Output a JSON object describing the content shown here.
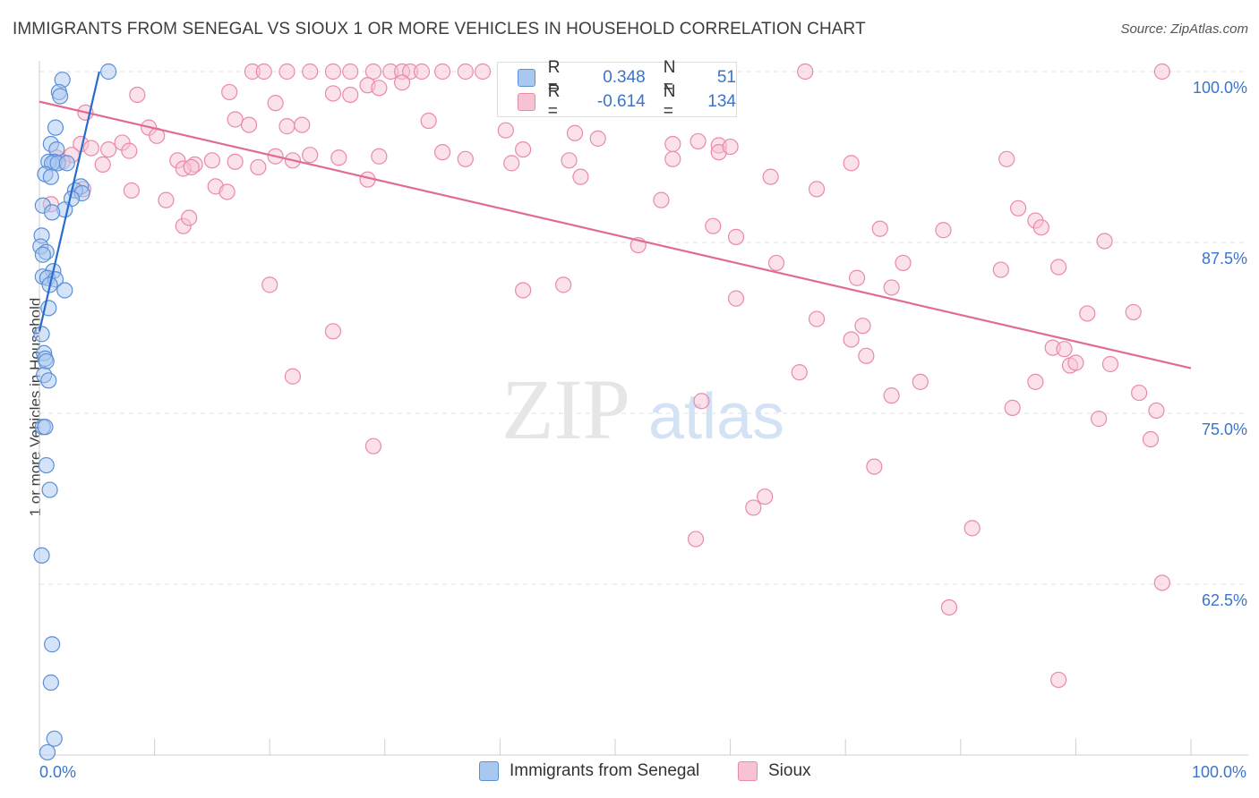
{
  "header": {
    "title": "IMMIGRANTS FROM SENEGAL VS SIOUX 1 OR MORE VEHICLES IN HOUSEHOLD CORRELATION CHART",
    "source": "Source: ZipAtlas.com"
  },
  "watermark": {
    "zip": "ZIP",
    "atlas": "atlas"
  },
  "legend": {
    "r_label": "R =",
    "n_label": "N =",
    "series": [
      {
        "r": "0.348",
        "n": "51"
      },
      {
        "r": "-0.614",
        "n": "134"
      }
    ]
  },
  "bottom_legend": [
    "Immigrants from Senegal",
    "Sioux"
  ],
  "colors": {
    "blue_fill": "#a9c8f0",
    "blue_stroke": "#5b8fd6",
    "blue_line": "#2a6ccc",
    "pink_fill": "#f7c3d4",
    "pink_stroke": "#e98aa9",
    "pink_line": "#e06b96",
    "tick_text": "#3a74cc"
  },
  "chart_data": {
    "type": "scatter",
    "title": "IMMIGRANTS FROM SENEGAL VS SIOUX 1 OR MORE VEHICLES IN HOUSEHOLD CORRELATION CHART",
    "xlabel": "",
    "ylabel": "1 or more Vehicles in Household",
    "xlim": [
      0,
      100
    ],
    "ylim": [
      50,
      100
    ],
    "x_tick_labels": [
      "0.0%",
      "100.0%"
    ],
    "y_ticks": [
      62.5,
      75.0,
      87.5,
      100.0
    ],
    "y_tick_labels": [
      "62.5%",
      "75.0%",
      "87.5%",
      "100.0%"
    ],
    "series": [
      {
        "name": "Immigrants from Senegal",
        "r": 0.348,
        "n": 51,
        "trend": [
          [
            0.0,
            81.0
          ],
          [
            5.2,
            100.0
          ]
        ],
        "points": [
          [
            6.0,
            100.0
          ],
          [
            2.0,
            99.4
          ],
          [
            1.7,
            98.5
          ],
          [
            1.8,
            98.2
          ],
          [
            1.4,
            95.9
          ],
          [
            1.0,
            94.7
          ],
          [
            1.5,
            94.3
          ],
          [
            1.3,
            93.4
          ],
          [
            0.8,
            93.4
          ],
          [
            1.1,
            93.3
          ],
          [
            1.6,
            93.3
          ],
          [
            2.4,
            93.3
          ],
          [
            0.5,
            92.5
          ],
          [
            1.0,
            92.3
          ],
          [
            3.6,
            91.6
          ],
          [
            3.1,
            91.3
          ],
          [
            3.7,
            91.1
          ],
          [
            2.8,
            90.7
          ],
          [
            0.3,
            90.2
          ],
          [
            2.2,
            89.9
          ],
          [
            1.1,
            89.7
          ],
          [
            0.2,
            88.0
          ],
          [
            0.1,
            87.2
          ],
          [
            0.6,
            86.8
          ],
          [
            0.3,
            86.6
          ],
          [
            1.2,
            85.4
          ],
          [
            0.3,
            85.0
          ],
          [
            0.7,
            84.9
          ],
          [
            1.4,
            84.8
          ],
          [
            0.9,
            84.4
          ],
          [
            2.2,
            84.0
          ],
          [
            0.8,
            82.7
          ],
          [
            0.2,
            80.8
          ],
          [
            0.4,
            79.4
          ],
          [
            0.5,
            79.0
          ],
          [
            0.6,
            78.8
          ],
          [
            0.4,
            77.8
          ],
          [
            0.8,
            77.4
          ],
          [
            0.3,
            74.0
          ],
          [
            0.5,
            74.0
          ],
          [
            0.6,
            71.2
          ],
          [
            0.9,
            69.4
          ],
          [
            0.2,
            64.6
          ],
          [
            1.1,
            58.1
          ],
          [
            1.0,
            55.3
          ],
          [
            1.3,
            51.2
          ],
          [
            0.7,
            50.2
          ]
        ]
      },
      {
        "name": "Sioux",
        "r": -0.614,
        "n": 134,
        "trend": [
          [
            0.0,
            97.8
          ],
          [
            100.0,
            78.3
          ]
        ],
        "points": [
          [
            18.5,
            100.0
          ],
          [
            19.5,
            100.0
          ],
          [
            21.5,
            100.0
          ],
          [
            23.5,
            100.0
          ],
          [
            25.5,
            100.0
          ],
          [
            27.0,
            100.0
          ],
          [
            29.0,
            100.0
          ],
          [
            30.5,
            100.0
          ],
          [
            31.5,
            100.0
          ],
          [
            32.2,
            100.0
          ],
          [
            33.2,
            100.0
          ],
          [
            35.0,
            100.0
          ],
          [
            37.0,
            100.0
          ],
          [
            38.5,
            100.0
          ],
          [
            66.5,
            100.0
          ],
          [
            97.5,
            100.0
          ],
          [
            28.5,
            99.0
          ],
          [
            29.5,
            98.8
          ],
          [
            31.5,
            99.2
          ],
          [
            25.5,
            98.4
          ],
          [
            27.0,
            98.3
          ],
          [
            8.5,
            98.3
          ],
          [
            16.5,
            98.5
          ],
          [
            20.5,
            97.7
          ],
          [
            4.0,
            97.0
          ],
          [
            17.0,
            96.5
          ],
          [
            18.2,
            96.1
          ],
          [
            21.5,
            96.0
          ],
          [
            22.8,
            96.1
          ],
          [
            33.8,
            96.4
          ],
          [
            9.5,
            95.9
          ],
          [
            10.2,
            95.3
          ],
          [
            3.6,
            94.7
          ],
          [
            4.5,
            94.4
          ],
          [
            6.0,
            94.3
          ],
          [
            7.2,
            94.8
          ],
          [
            40.5,
            95.7
          ],
          [
            46.5,
            95.5
          ],
          [
            48.5,
            95.1
          ],
          [
            55.0,
            94.7
          ],
          [
            57.2,
            94.9
          ],
          [
            59.0,
            94.6
          ],
          [
            2.8,
            93.9
          ],
          [
            1.5,
            93.7
          ],
          [
            7.8,
            94.2
          ],
          [
            12.0,
            93.5
          ],
          [
            13.5,
            93.2
          ],
          [
            15.0,
            93.5
          ],
          [
            17.0,
            93.4
          ],
          [
            19.0,
            93.0
          ],
          [
            20.5,
            93.8
          ],
          [
            22.0,
            93.5
          ],
          [
            23.5,
            93.9
          ],
          [
            26.0,
            93.7
          ],
          [
            29.5,
            93.8
          ],
          [
            35.0,
            94.1
          ],
          [
            37.0,
            93.6
          ],
          [
            41.0,
            93.3
          ],
          [
            42.0,
            94.3
          ],
          [
            46.0,
            93.5
          ],
          [
            55.0,
            93.6
          ],
          [
            59.0,
            94.1
          ],
          [
            60.0,
            94.5
          ],
          [
            63.5,
            92.3
          ],
          [
            70.5,
            93.3
          ],
          [
            84.0,
            93.6
          ],
          [
            2.0,
            93.4
          ],
          [
            5.5,
            93.2
          ],
          [
            12.5,
            92.9
          ],
          [
            13.2,
            93.0
          ],
          [
            15.3,
            91.6
          ],
          [
            28.5,
            92.1
          ],
          [
            47.0,
            92.3
          ],
          [
            3.8,
            91.4
          ],
          [
            8.0,
            91.3
          ],
          [
            11.0,
            90.6
          ],
          [
            16.3,
            91.2
          ],
          [
            54.0,
            90.6
          ],
          [
            67.5,
            91.4
          ],
          [
            85.0,
            90.0
          ],
          [
            1.0,
            90.3
          ],
          [
            12.5,
            88.7
          ],
          [
            13.0,
            89.3
          ],
          [
            58.5,
            88.7
          ],
          [
            60.5,
            87.9
          ],
          [
            73.0,
            88.5
          ],
          [
            78.5,
            88.4
          ],
          [
            86.5,
            89.1
          ],
          [
            87.0,
            88.6
          ],
          [
            92.5,
            87.6
          ],
          [
            52.0,
            87.3
          ],
          [
            64.0,
            86.0
          ],
          [
            75.0,
            86.0
          ],
          [
            83.5,
            85.5
          ],
          [
            88.5,
            85.7
          ],
          [
            45.5,
            84.4
          ],
          [
            60.5,
            83.4
          ],
          [
            71.0,
            84.9
          ],
          [
            74.0,
            84.2
          ],
          [
            95.0,
            82.4
          ],
          [
            20.0,
            84.4
          ],
          [
            42.0,
            84.0
          ],
          [
            67.5,
            81.9
          ],
          [
            71.5,
            81.4
          ],
          [
            91.0,
            82.3
          ],
          [
            25.5,
            81.0
          ],
          [
            70.5,
            80.4
          ],
          [
            71.8,
            79.2
          ],
          [
            88.0,
            79.8
          ],
          [
            89.0,
            79.7
          ],
          [
            66.0,
            78.0
          ],
          [
            76.5,
            77.3
          ],
          [
            86.5,
            77.3
          ],
          [
            89.5,
            78.5
          ],
          [
            90.0,
            78.7
          ],
          [
            93.0,
            78.6
          ],
          [
            22.0,
            77.7
          ],
          [
            74.0,
            76.3
          ],
          [
            57.5,
            75.9
          ],
          [
            84.5,
            75.4
          ],
          [
            92.0,
            74.6
          ],
          [
            95.5,
            76.5
          ],
          [
            97.0,
            75.2
          ],
          [
            29.0,
            72.6
          ],
          [
            72.5,
            71.1
          ],
          [
            96.5,
            73.1
          ],
          [
            62.0,
            68.1
          ],
          [
            63.0,
            68.9
          ],
          [
            57.0,
            65.8
          ],
          [
            81.0,
            66.6
          ],
          [
            97.5,
            62.6
          ],
          [
            79.0,
            60.8
          ],
          [
            88.5,
            55.5
          ]
        ]
      }
    ]
  }
}
